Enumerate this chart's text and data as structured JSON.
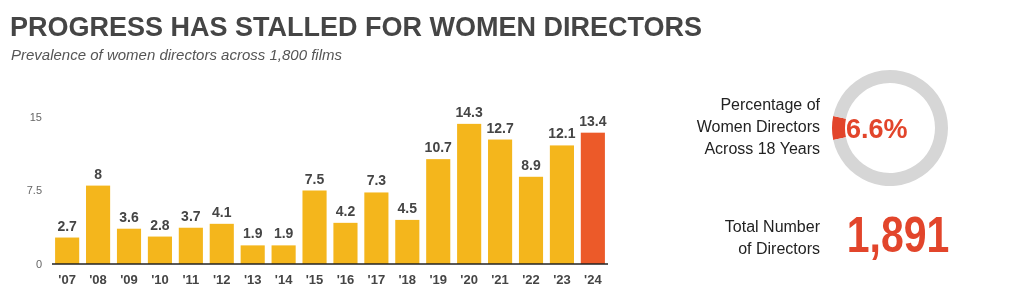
{
  "chart_data": [
    {
      "type": "bar",
      "title": "PROGRESS HAS STALLED FOR WOMEN DIRECTORS",
      "subtitle": "Prevalence of women directors across 1,800 films",
      "categories": [
        "'07",
        "'08",
        "'09",
        "'10",
        "'11",
        "'12",
        "'13",
        "'14",
        "'15",
        "'16",
        "'17",
        "'18",
        "'19",
        "'20",
        "'21",
        "'22",
        "'23",
        "'24"
      ],
      "values": [
        2.7,
        8,
        3.6,
        2.8,
        3.7,
        4.1,
        1.9,
        1.9,
        7.5,
        4.2,
        7.3,
        4.5,
        10.7,
        14.3,
        12.7,
        8.9,
        12.1,
        13.4
      ],
      "colors": [
        "#f4b61c",
        "#f4b61c",
        "#f4b61c",
        "#f4b61c",
        "#f4b61c",
        "#f4b61c",
        "#f4b61c",
        "#f4b61c",
        "#f4b61c",
        "#f4b61c",
        "#f4b61c",
        "#f4b61c",
        "#f4b61c",
        "#f4b61c",
        "#f4b61c",
        "#f4b61c",
        "#f4b61c",
        "#ec5a29"
      ],
      "ylim": [
        0,
        15
      ],
      "yticks": [
        0,
        7.5,
        15
      ],
      "grid": false,
      "data_labels": true
    },
    {
      "type": "donut",
      "title": "Percentage of Women Directors Across 18 Years",
      "categories": [
        null,
        null
      ],
      "values": [
        6.6,
        93.4
      ],
      "colors": [
        "#e2452b",
        "#d6d6d6"
      ],
      "value_labels": [
        "6.6%",
        null
      ]
    },
    {
      "type": "other",
      "title": "Total Number of Directors",
      "annotations": [
        "1,891"
      ]
    }
  ]
}
